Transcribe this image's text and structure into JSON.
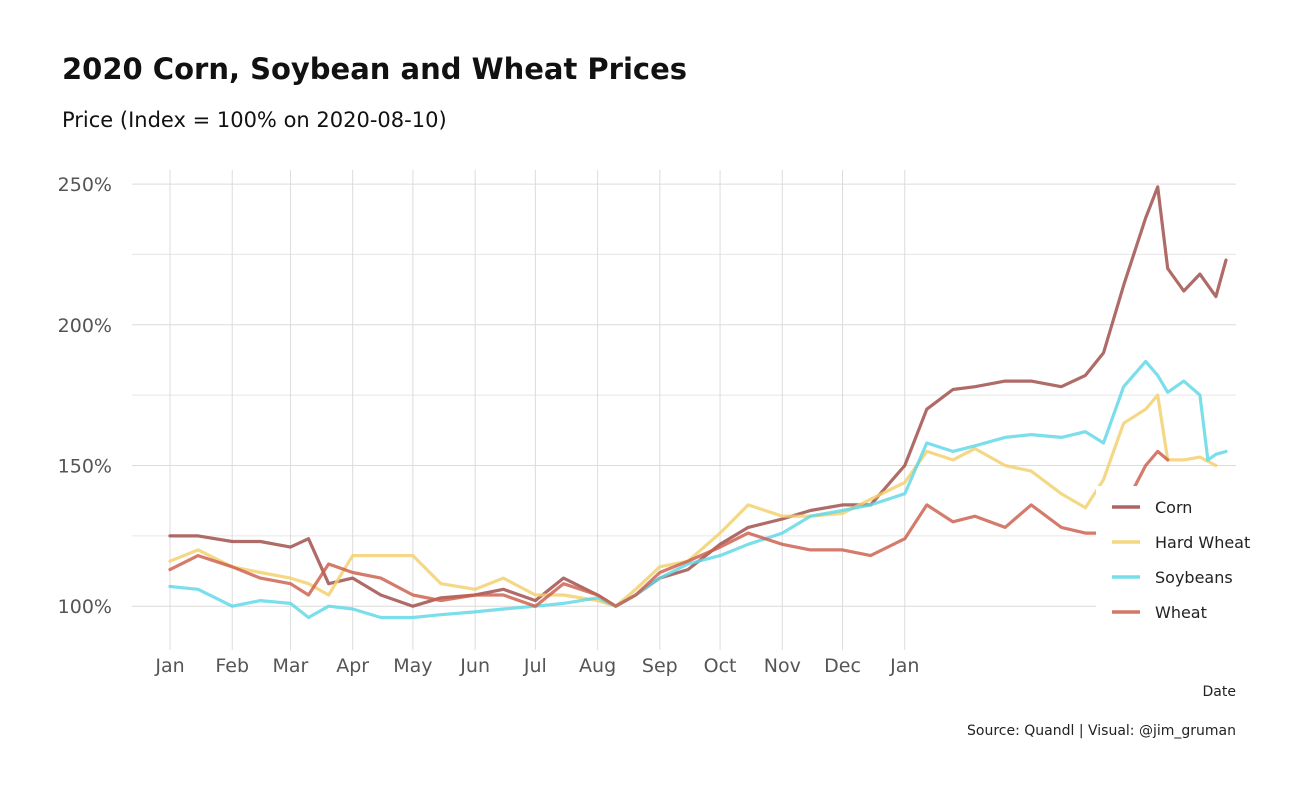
{
  "chart_data": {
    "type": "line",
    "title": "2020 Corn, Soybean and Wheat Prices",
    "subtitle": "Price (Index = 100% on 2020-08-10)",
    "xlabel": "Date",
    "ylabel": "",
    "caption": "Source: Quandl | Visual: @jim_gruman",
    "x_tick_labels": [
      "Jan",
      "Feb",
      "Mar",
      "Apr",
      "May",
      "Jun",
      "Jul",
      "Aug",
      "Sep",
      "Oct",
      "Nov",
      "Dec",
      "Jan"
    ],
    "x_ticks": [
      "2020-01-01",
      "2020-02-01",
      "2020-03-01",
      "2020-04-01",
      "2020-05-01",
      "2020-06-01",
      "2020-07-01",
      "2020-08-01",
      "2020-09-01",
      "2020-10-01",
      "2020-11-01",
      "2020-12-01",
      "2021-01-01"
    ],
    "xlim": [
      "2020-01-01",
      "2021-06-15"
    ],
    "y_tick_labels": [
      "100%",
      "150%",
      "200%",
      "250%"
    ],
    "y_ticks": [
      100,
      150,
      200,
      250
    ],
    "ylim": [
      88,
      255
    ],
    "grid": true,
    "legend_position": "right",
    "series": [
      {
        "name": "Corn",
        "color": "#9e4a46",
        "x": [
          "2020-01-01",
          "2020-01-15",
          "2020-02-01",
          "2020-02-15",
          "2020-03-01",
          "2020-03-10",
          "2020-03-20",
          "2020-04-01",
          "2020-04-15",
          "2020-05-01",
          "2020-05-15",
          "2020-06-01",
          "2020-06-15",
          "2020-07-01",
          "2020-07-15",
          "2020-08-01",
          "2020-08-10",
          "2020-08-20",
          "2020-09-01",
          "2020-09-15",
          "2020-10-01",
          "2020-10-15",
          "2020-11-01",
          "2020-11-15",
          "2020-12-01",
          "2020-12-15",
          "2021-01-01",
          "2021-01-12",
          "2021-01-25",
          "2021-02-05",
          "2021-02-20",
          "2021-03-05",
          "2021-03-20",
          "2021-04-01",
          "2021-04-10",
          "2021-04-20",
          "2021-05-01",
          "2021-05-07",
          "2021-05-12",
          "2021-05-20",
          "2021-05-28",
          "2021-06-05",
          "2021-06-10"
        ],
        "values": [
          125,
          125,
          123,
          123,
          121,
          124,
          108,
          110,
          104,
          100,
          103,
          104,
          106,
          102,
          110,
          104,
          100,
          104,
          110,
          113,
          122,
          128,
          131,
          134,
          136,
          136,
          150,
          170,
          177,
          178,
          180,
          180,
          178,
          182,
          190,
          214,
          238,
          249,
          220,
          212,
          218,
          210,
          223
        ]
      },
      {
        "name": "Hard Wheat",
        "color": "#f2d06b",
        "x": [
          "2020-01-01",
          "2020-01-15",
          "2020-02-01",
          "2020-02-15",
          "2020-03-01",
          "2020-03-10",
          "2020-03-20",
          "2020-04-01",
          "2020-04-15",
          "2020-05-01",
          "2020-05-15",
          "2020-06-01",
          "2020-06-15",
          "2020-07-01",
          "2020-07-15",
          "2020-08-01",
          "2020-08-10",
          "2020-08-20",
          "2020-09-01",
          "2020-09-15",
          "2020-10-01",
          "2020-10-15",
          "2020-11-01",
          "2020-11-15",
          "2020-12-01",
          "2020-12-15",
          "2021-01-01",
          "2021-01-12",
          "2021-01-25",
          "2021-02-05",
          "2021-02-20",
          "2021-03-05",
          "2021-03-20",
          "2021-04-01",
          "2021-04-10",
          "2021-04-20",
          "2021-05-01",
          "2021-05-07",
          "2021-05-12",
          "2021-05-20",
          "2021-05-28",
          "2021-06-05"
        ],
        "values": [
          116,
          120,
          114,
          112,
          110,
          108,
          104,
          118,
          118,
          118,
          108,
          106,
          110,
          104,
          104,
          102,
          100,
          106,
          114,
          116,
          126,
          136,
          132,
          132,
          133,
          138,
          144,
          155,
          152,
          156,
          150,
          148,
          140,
          135,
          145,
          165,
          170,
          175,
          152,
          152,
          153,
          150
        ]
      },
      {
        "name": "Soybeans",
        "color": "#5ed8e6",
        "x": [
          "2020-01-01",
          "2020-01-15",
          "2020-02-01",
          "2020-02-15",
          "2020-03-01",
          "2020-03-10",
          "2020-03-20",
          "2020-04-01",
          "2020-04-15",
          "2020-05-01",
          "2020-05-15",
          "2020-06-01",
          "2020-06-15",
          "2020-07-01",
          "2020-07-15",
          "2020-08-01",
          "2020-08-10",
          "2020-08-20",
          "2020-09-01",
          "2020-09-15",
          "2020-10-01",
          "2020-10-15",
          "2020-11-01",
          "2020-11-15",
          "2020-12-01",
          "2020-12-15",
          "2021-01-01",
          "2021-01-12",
          "2021-01-25",
          "2021-02-05",
          "2021-02-20",
          "2021-03-05",
          "2021-03-20",
          "2021-04-01",
          "2021-04-10",
          "2021-04-20",
          "2021-05-01",
          "2021-05-07",
          "2021-05-12",
          "2021-05-20",
          "2021-05-28",
          "2021-06-01",
          "2021-06-05",
          "2021-06-10"
        ],
        "values": [
          107,
          106,
          100,
          102,
          101,
          96,
          100,
          99,
          96,
          96,
          97,
          98,
          99,
          100,
          101,
          103,
          100,
          104,
          110,
          115,
          118,
          122,
          126,
          132,
          134,
          136,
          140,
          158,
          155,
          157,
          160,
          161,
          160,
          162,
          158,
          178,
          187,
          182,
          176,
          180,
          175,
          152,
          154,
          155
        ]
      },
      {
        "name": "Wheat",
        "color": "#cb5e4b",
        "x": [
          "2020-01-01",
          "2020-01-15",
          "2020-02-01",
          "2020-02-15",
          "2020-03-01",
          "2020-03-10",
          "2020-03-20",
          "2020-04-01",
          "2020-04-15",
          "2020-05-01",
          "2020-05-15",
          "2020-06-01",
          "2020-06-15",
          "2020-07-01",
          "2020-07-15",
          "2020-08-01",
          "2020-08-10",
          "2020-08-20",
          "2020-09-01",
          "2020-09-15",
          "2020-10-01",
          "2020-10-15",
          "2020-11-01",
          "2020-11-15",
          "2020-12-01",
          "2020-12-15",
          "2021-01-01",
          "2021-01-12",
          "2021-01-25",
          "2021-02-05",
          "2021-02-20",
          "2021-03-05",
          "2021-03-20",
          "2021-04-01",
          "2021-04-10",
          "2021-04-20",
          "2021-05-01",
          "2021-05-07",
          "2021-05-12"
        ],
        "values": [
          113,
          118,
          114,
          110,
          108,
          104,
          115,
          112,
          110,
          104,
          102,
          104,
          104,
          100,
          108,
          104,
          100,
          104,
          112,
          116,
          121,
          126,
          122,
          120,
          120,
          118,
          124,
          136,
          130,
          132,
          128,
          136,
          128,
          126,
          126,
          135,
          150,
          155,
          152
        ]
      }
    ]
  }
}
